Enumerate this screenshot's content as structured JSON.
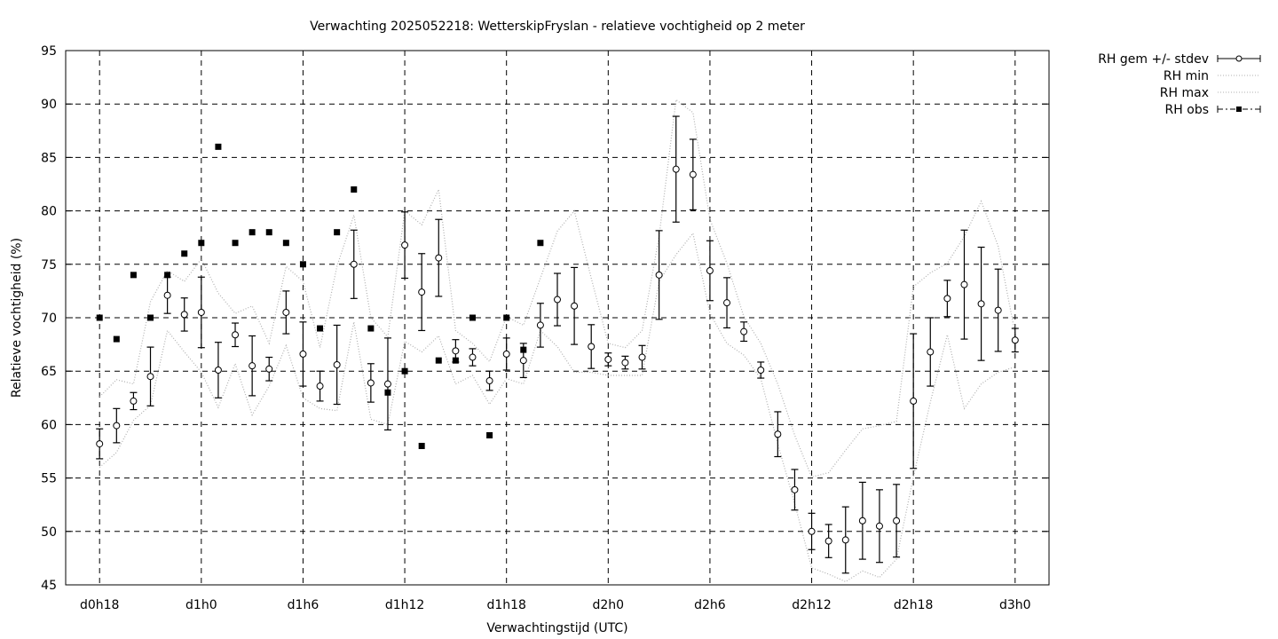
{
  "chart_data": {
    "type": "line",
    "title": "Verwachting 2025052218: WetterskipFryslan - relatieve vochtigheid op 2 meter",
    "xlabel": "Verwachtingstijd (UTC)",
    "ylabel": "Relatieve vochtigheid (%)",
    "ylim": [
      45,
      95
    ],
    "xlim": [
      "d0h16",
      "d3h2"
    ],
    "grid": true,
    "legend_placement": "outside-top-right",
    "yticks": [
      45,
      50,
      55,
      60,
      65,
      70,
      75,
      80,
      85,
      90,
      95
    ],
    "xticks": [
      "d0h18",
      "d1h0",
      "d1h6",
      "d1h12",
      "d1h18",
      "d2h0",
      "d2h6",
      "d2h12",
      "d2h18",
      "d3h0"
    ],
    "x": [
      "d0h18",
      "d0h19",
      "d0h20",
      "d0h21",
      "d0h22",
      "d0h23",
      "d1h0",
      "d1h1",
      "d1h2",
      "d1h3",
      "d1h4",
      "d1h5",
      "d1h6",
      "d1h7",
      "d1h8",
      "d1h9",
      "d1h10",
      "d1h11",
      "d1h12",
      "d1h13",
      "d1h14",
      "d1h15",
      "d1h16",
      "d1h17",
      "d1h18",
      "d1h19",
      "d1h20",
      "d1h21",
      "d1h22",
      "d1h23",
      "d2h0",
      "d2h1",
      "d2h2",
      "d2h3",
      "d2h4",
      "d2h5",
      "d2h6",
      "d2h7",
      "d2h8",
      "d2h9",
      "d2h10",
      "d2h11",
      "d2h12",
      "d2h13",
      "d2h14",
      "d2h15",
      "d2h16",
      "d2h17",
      "d2h18",
      "d2h19",
      "d2h20",
      "d2h21",
      "d2h22",
      "d2h23",
      "d3h0"
    ],
    "series": [
      {
        "name": "RH gem +/- stdev",
        "style": "errorbar-circle",
        "values": [
          58.2,
          59.9,
          62.2,
          64.5,
          72.1,
          70.3,
          70.5,
          65.1,
          68.4,
          65.5,
          65.2,
          70.5,
          66.6,
          63.6,
          65.6,
          75.0,
          63.9,
          63.8,
          76.8,
          72.4,
          75.6,
          66.9,
          66.3,
          64.1,
          66.6,
          66.0,
          69.3,
          71.7,
          71.1,
          67.3,
          66.1,
          65.8,
          66.3,
          74.0,
          83.9,
          83.4,
          74.4,
          71.4,
          68.7,
          65.1,
          59.1,
          53.9,
          50.0,
          49.1,
          49.2,
          51.0,
          50.5,
          51.0,
          62.2,
          66.8,
          71.8,
          73.1,
          71.3,
          70.7,
          67.9
        ],
        "stdev": [
          1.4,
          1.6,
          0.8,
          2.75,
          1.7,
          1.55,
          3.3,
          2.6,
          1.1,
          2.8,
          1.1,
          2.0,
          3.0,
          1.4,
          3.7,
          3.2,
          1.8,
          4.3,
          3.1,
          3.6,
          3.6,
          1.05,
          0.8,
          0.9,
          1.5,
          1.6,
          2.05,
          2.45,
          3.6,
          2.05,
          0.6,
          0.6,
          1.1,
          4.15,
          4.95,
          3.3,
          2.8,
          2.35,
          0.9,
          0.75,
          2.1,
          1.9,
          1.7,
          1.55,
          3.1,
          3.6,
          3.4,
          3.4,
          6.3,
          3.2,
          1.7,
          5.1,
          5.3,
          3.85,
          1.1
        ]
      },
      {
        "name": "RH min",
        "style": "dotted",
        "values": [
          56.0,
          57.4,
          60.4,
          61.8,
          68.8,
          66.8,
          64.9,
          61.6,
          65.7,
          60.9,
          63.6,
          67.4,
          62.5,
          61.5,
          61.3,
          69.6,
          60.5,
          60.0,
          67.8,
          66.8,
          68.3,
          63.8,
          64.6,
          61.9,
          64.3,
          63.8,
          68.8,
          67.3,
          64.9,
          64.9,
          64.6,
          64.6,
          64.6,
          73.4,
          75.9,
          77.9,
          70.4,
          67.6,
          66.5,
          64.3,
          58.2,
          52.6,
          46.6,
          46.0,
          45.3,
          46.3,
          45.7,
          47.4,
          55.1,
          62.1,
          68.4,
          61.5,
          63.8,
          64.9,
          65.4
        ]
      },
      {
        "name": "RH max",
        "style": "dotted",
        "values": [
          62.6,
          64.2,
          63.8,
          71.5,
          74.4,
          73.4,
          75.5,
          72.3,
          70.4,
          71.1,
          67.6,
          74.8,
          73.4,
          67.2,
          74.8,
          79.6,
          70.0,
          68.2,
          80.0,
          78.7,
          82.0,
          68.8,
          67.6,
          65.9,
          70.1,
          69.3,
          73.7,
          78.1,
          80.0,
          73.7,
          67.6,
          67.2,
          68.8,
          77.6,
          90.4,
          89.2,
          79.2,
          75.1,
          70.1,
          67.6,
          63.8,
          59.0,
          55.1,
          55.5,
          57.6,
          59.6,
          59.9,
          60.3,
          72.9,
          74.2,
          75.1,
          77.6,
          80.9,
          76.7,
          68.5
        ]
      },
      {
        "name": "RH obs",
        "style": "square",
        "values": [
          70,
          68,
          74,
          70,
          74,
          76,
          77,
          86,
          77,
          78,
          78,
          77,
          75,
          69,
          78,
          82,
          69,
          63,
          65,
          58,
          66,
          66,
          70,
          59,
          70,
          67,
          77,
          null,
          null,
          null,
          null,
          null,
          null,
          null,
          null,
          null,
          null,
          null,
          null,
          null,
          null,
          null,
          null,
          null,
          null,
          null,
          null,
          null,
          null,
          null,
          null,
          null,
          null,
          null,
          null
        ]
      }
    ],
    "colors": {
      "mean": "#000000",
      "minmax": "#b0b0b0",
      "obs": "#000000"
    }
  }
}
